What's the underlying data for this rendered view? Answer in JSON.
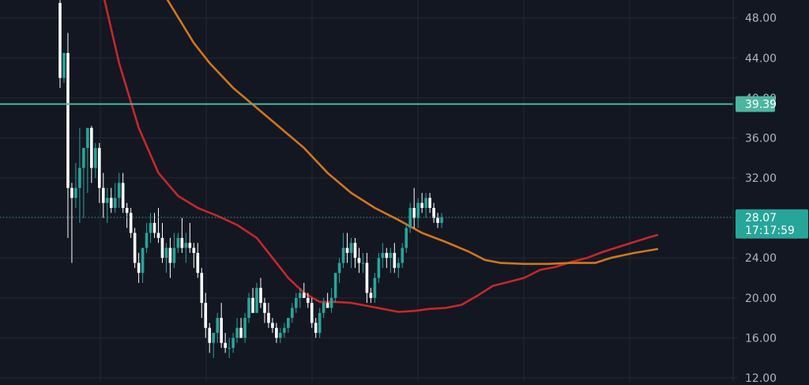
{
  "chart_data": {
    "type": "candlestick",
    "title": "",
    "xlabel": "",
    "ylabel": "",
    "ylim": [
      12,
      49.4
    ],
    "grid": true,
    "y_ticks": [
      "48.00",
      "44.00",
      "40.00",
      "36.00",
      "32.00",
      "28.00",
      "24.00",
      "20.00",
      "16.00",
      "12.00"
    ],
    "colors": {
      "background": "#131722",
      "grid": "#232836",
      "up_candle": "#26a69a",
      "down_candle": "#ffffff",
      "fast_ma": "#c62828",
      "slow_ma": "#d2761a",
      "level_line": "#4db6a0",
      "last_price": "#26a69a",
      "axis_text": "#b2b5be"
    },
    "level_line": {
      "value": 39.39,
      "label": "39.39"
    },
    "last_price": {
      "value": 28.07,
      "label": "28.07",
      "countdown": "17:17:59"
    },
    "candles": [
      [
        49.5,
        55.0,
        41.0,
        42.0
      ],
      [
        42.0,
        44.5,
        41.5,
        44.5
      ],
      [
        44.5,
        46.5,
        26.0,
        31.0
      ],
      [
        31.0,
        31.5,
        23.5,
        30.0
      ],
      [
        30.0,
        33.5,
        29.0,
        31.0
      ],
      [
        31.0,
        37.0,
        27.5,
        33.0
      ],
      [
        33.0,
        35.0,
        28.0,
        35.0
      ],
      [
        35.0,
        37.0,
        30.5,
        37.0
      ],
      [
        37.0,
        37.2,
        31.5,
        33.0
      ],
      [
        33.0,
        35.5,
        32.0,
        35.0
      ],
      [
        35.0,
        35.5,
        29.5,
        31.0
      ],
      [
        31.0,
        32.5,
        28.0,
        29.5
      ],
      [
        29.5,
        31.0,
        27.5,
        30.0
      ],
      [
        30.0,
        31.0,
        28.5,
        29.0
      ],
      [
        29.0,
        31.5,
        28.5,
        30.0
      ],
      [
        30.0,
        32.5,
        29.0,
        31.5
      ],
      [
        31.5,
        32.5,
        28.5,
        29.0
      ],
      [
        29.0,
        29.5,
        27.0,
        28.5
      ],
      [
        28.5,
        29.0,
        26.0,
        26.5
      ],
      [
        26.5,
        27.0,
        23.0,
        23.5
      ],
      [
        23.5,
        24.5,
        21.5,
        22.5
      ],
      [
        22.5,
        25.0,
        21.5,
        25.0
      ],
      [
        25.0,
        27.5,
        24.5,
        26.5
      ],
      [
        26.5,
        28.5,
        25.5,
        27.5
      ],
      [
        27.5,
        28.5,
        26.0,
        26.5
      ],
      [
        26.5,
        29.0,
        25.5,
        26.0
      ],
      [
        26.0,
        27.5,
        23.5,
        24.0
      ],
      [
        24.0,
        25.5,
        22.5,
        25.0
      ],
      [
        25.0,
        26.0,
        22.0,
        23.5
      ],
      [
        23.5,
        26.5,
        23.0,
        25.0
      ],
      [
        25.0,
        26.5,
        24.5,
        26.0
      ],
      [
        26.0,
        28.0,
        24.5,
        25.0
      ],
      [
        25.0,
        26.5,
        23.5,
        25.5
      ],
      [
        25.5,
        27.5,
        24.5,
        25.0
      ],
      [
        25.0,
        25.5,
        23.0,
        24.5
      ],
      [
        24.5,
        25.5,
        22.0,
        22.5
      ],
      [
        22.5,
        23.0,
        18.0,
        19.5
      ],
      [
        19.5,
        20.5,
        16.0,
        17.0
      ],
      [
        17.0,
        17.5,
        14.5,
        15.5
      ],
      [
        15.5,
        16.5,
        14.0,
        16.5
      ],
      [
        16.5,
        18.5,
        15.5,
        18.0
      ],
      [
        18.0,
        19.5,
        15.0,
        15.5
      ],
      [
        15.5,
        16.5,
        14.5,
        15.0
      ],
      [
        15.0,
        16.0,
        14.0,
        15.0
      ],
      [
        15.0,
        16.5,
        14.5,
        16.0
      ],
      [
        16.0,
        18.0,
        15.5,
        17.0
      ],
      [
        17.0,
        18.0,
        16.0,
        16.0
      ],
      [
        16.0,
        18.5,
        15.5,
        18.0
      ],
      [
        18.0,
        20.5,
        17.5,
        20.0
      ],
      [
        20.0,
        21.0,
        18.5,
        18.5
      ],
      [
        18.5,
        21.5,
        18.5,
        21.0
      ],
      [
        21.0,
        22.0,
        19.0,
        19.5
      ],
      [
        19.5,
        20.0,
        17.5,
        18.5
      ],
      [
        18.5,
        19.5,
        17.0,
        17.5
      ],
      [
        17.5,
        18.0,
        16.5,
        17.0
      ],
      [
        17.0,
        17.5,
        15.5,
        16.0
      ],
      [
        16.0,
        17.0,
        15.5,
        16.5
      ],
      [
        16.5,
        17.5,
        16.0,
        17.0
      ],
      [
        17.0,
        18.0,
        16.5,
        18.0
      ],
      [
        18.0,
        19.5,
        17.5,
        19.0
      ],
      [
        19.0,
        20.5,
        18.5,
        20.0
      ],
      [
        20.0,
        21.0,
        19.0,
        20.5
      ],
      [
        20.5,
        21.5,
        20.0,
        20.0
      ],
      [
        20.0,
        20.5,
        19.0,
        19.5
      ],
      [
        19.5,
        20.0,
        17.0,
        17.5
      ],
      [
        17.5,
        18.0,
        16.0,
        16.5
      ],
      [
        16.5,
        19.0,
        16.0,
        18.5
      ],
      [
        18.5,
        20.0,
        18.0,
        19.5
      ],
      [
        19.5,
        20.5,
        19.0,
        19.0
      ],
      [
        19.0,
        21.0,
        18.5,
        20.0
      ],
      [
        20.0,
        22.5,
        19.5,
        22.5
      ],
      [
        22.5,
        24.0,
        21.5,
        23.5
      ],
      [
        23.5,
        26.5,
        23.0,
        25.0
      ],
      [
        25.0,
        26.5,
        23.5,
        24.5
      ],
      [
        24.5,
        26.0,
        23.0,
        25.5
      ],
      [
        25.5,
        26.0,
        23.0,
        24.0
      ],
      [
        24.0,
        25.0,
        22.5,
        23.5
      ],
      [
        23.5,
        24.5,
        22.5,
        23.5
      ],
      [
        23.5,
        24.5,
        19.5,
        20.5
      ],
      [
        20.5,
        21.0,
        19.5,
        20.0
      ],
      [
        20.0,
        22.5,
        19.5,
        22.0
      ],
      [
        22.0,
        24.5,
        21.5,
        24.0
      ],
      [
        24.0,
        25.5,
        23.0,
        24.5
      ],
      [
        24.5,
        25.0,
        23.0,
        24.0
      ],
      [
        24.0,
        25.0,
        22.5,
        24.5
      ],
      [
        24.5,
        25.5,
        22.5,
        23.0
      ],
      [
        23.0,
        24.0,
        22.0,
        23.5
      ],
      [
        23.5,
        25.5,
        23.0,
        25.0
      ],
      [
        25.0,
        27.5,
        24.5,
        27.0
      ],
      [
        27.0,
        29.5,
        26.5,
        29.0
      ],
      [
        29.0,
        31.0,
        27.0,
        28.0
      ],
      [
        28.0,
        30.0,
        27.0,
        29.5
      ],
      [
        29.5,
        30.5,
        28.5,
        29.0
      ],
      [
        29.0,
        30.5,
        28.0,
        30.0
      ],
      [
        30.0,
        30.5,
        28.5,
        29.0
      ],
      [
        29.0,
        29.5,
        27.5,
        28.0
      ],
      [
        28.0,
        28.5,
        27.0,
        27.5
      ],
      [
        27.5,
        28.5,
        27.0,
        28.07
      ]
    ],
    "moving_averages": [
      {
        "name": "",
        "color": "#c62828",
        "points": [
          [
            4,
            60.0
          ],
          [
            10,
            52.0
          ],
          [
            15,
            43.5
          ],
          [
            20,
            37.0
          ],
          [
            25,
            32.5
          ],
          [
            30,
            30.2
          ],
          [
            35,
            29.0
          ],
          [
            40,
            28.2
          ],
          [
            45,
            27.3
          ],
          [
            50,
            26.0
          ],
          [
            54,
            24.0
          ],
          [
            58,
            22.0
          ],
          [
            62,
            20.5
          ],
          [
            66,
            19.6
          ],
          [
            70,
            19.6
          ],
          [
            74,
            19.5
          ],
          [
            78,
            19.2
          ],
          [
            82,
            18.9
          ],
          [
            86,
            18.6
          ],
          [
            90,
            18.7
          ],
          [
            94,
            18.9
          ],
          [
            98,
            19.0
          ],
          [
            102,
            19.3
          ],
          [
            106,
            20.2
          ],
          [
            110,
            21.2
          ],
          [
            114,
            21.6
          ],
          [
            118,
            22.0
          ],
          [
            122,
            22.8
          ],
          [
            126,
            23.1
          ],
          [
            130,
            23.6
          ],
          [
            134,
            24.0
          ],
          [
            138,
            24.6
          ],
          [
            142,
            25.1
          ],
          [
            146,
            25.6
          ],
          [
            150,
            26.1
          ],
          [
            152,
            26.3
          ]
        ]
      },
      {
        "name": "",
        "color": "#d2761a",
        "points": [
          [
            12,
            60.0
          ],
          [
            20,
            55.0
          ],
          [
            27,
            50.0
          ],
          [
            34,
            45.5
          ],
          [
            38,
            43.5
          ],
          [
            44,
            41.0
          ],
          [
            50,
            39.0
          ],
          [
            56,
            37.0
          ],
          [
            62,
            35.0
          ],
          [
            68,
            32.5
          ],
          [
            74,
            30.5
          ],
          [
            80,
            29.0
          ],
          [
            86,
            27.8
          ],
          [
            92,
            26.5
          ],
          [
            98,
            25.6
          ],
          [
            104,
            24.6
          ],
          [
            108,
            23.8
          ],
          [
            112,
            23.5
          ],
          [
            118,
            23.4
          ],
          [
            124,
            23.4
          ],
          [
            130,
            23.5
          ],
          [
            136,
            23.5
          ],
          [
            140,
            24.0
          ],
          [
            146,
            24.5
          ],
          [
            152,
            24.9
          ]
        ]
      }
    ]
  }
}
